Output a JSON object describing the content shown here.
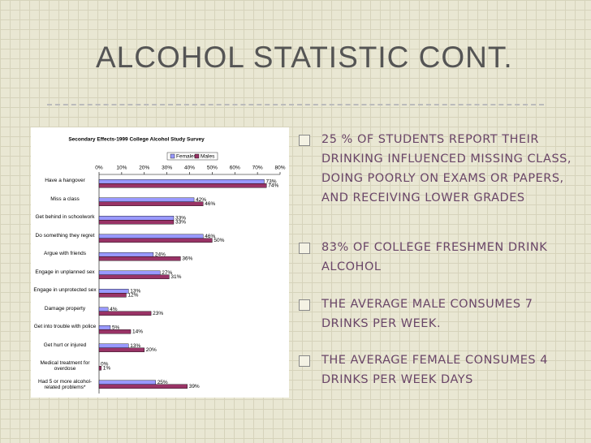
{
  "slide": {
    "title": "ALCOHOL STATISTIC CONT.",
    "bullets": [
      "25 % OF STUDENTS REPORT THEIR DRINKING INFLUENCED MISSING CLASS, DOING POORLY ON EXAMS OR PAPERS, AND RECEIVING LOWER GRADES",
      "83% OF COLLEGE FRESHMEN DRINK ALCOHOL",
      "THE AVERAGE MALE CONSUMES 7 DRINKS PER WEEK.",
      "THE AVERAGE FEMALE CONSUMES 4 DRINKS PER WEEK DAYS"
    ]
  },
  "chart_data": {
    "type": "bar",
    "orientation": "horizontal",
    "title": "Secondary Effects-1999 College Alcohol Study Survey",
    "categories": [
      "Have a hangover",
      "Miss a class",
      "Get behind in schoolwork",
      "Do something they regret",
      "Argue with friends",
      "Engage in unplanned sex",
      "Engage in unprotected sex",
      "Damage property",
      "Get into trouble with police",
      "Get hurt or injured",
      "Medical treatment for overdose",
      "Had 5 or more alcohol-related problems*"
    ],
    "series": [
      {
        "name": "Females",
        "color": "#9999ff",
        "values": [
          73,
          42,
          33,
          46,
          24,
          27,
          13,
          4,
          5,
          13,
          0,
          25
        ],
        "value_labels": [
          "73%",
          "42%",
          "33%",
          "46%",
          "24%",
          "27%",
          "13%",
          "4%",
          "5%",
          "13%",
          "0%",
          "25%"
        ]
      },
      {
        "name": "Males",
        "color": "#993366",
        "values": [
          74,
          46,
          33,
          50,
          36,
          31,
          12,
          23,
          14,
          20,
          1,
          39
        ],
        "value_labels": [
          "74%",
          "46%",
          "33%",
          "50%",
          "36%",
          "31%",
          "12%",
          "23%",
          "14%",
          "20%",
          "1%",
          "39%"
        ]
      }
    ],
    "xlim": [
      0,
      80
    ],
    "xticks": [
      {
        "value": 0,
        "label": "0%"
      },
      {
        "value": 10,
        "label": "10%"
      },
      {
        "value": 20,
        "label": "20%"
      },
      {
        "value": 30,
        "label": "30%"
      },
      {
        "value": 40,
        "label": "40%"
      },
      {
        "value": 50,
        "label": "50%"
      },
      {
        "value": 60,
        "label": "60%"
      },
      {
        "value": 70,
        "label": "70%"
      },
      {
        "value": 80,
        "label": "80%"
      }
    ],
    "legend": "top"
  }
}
